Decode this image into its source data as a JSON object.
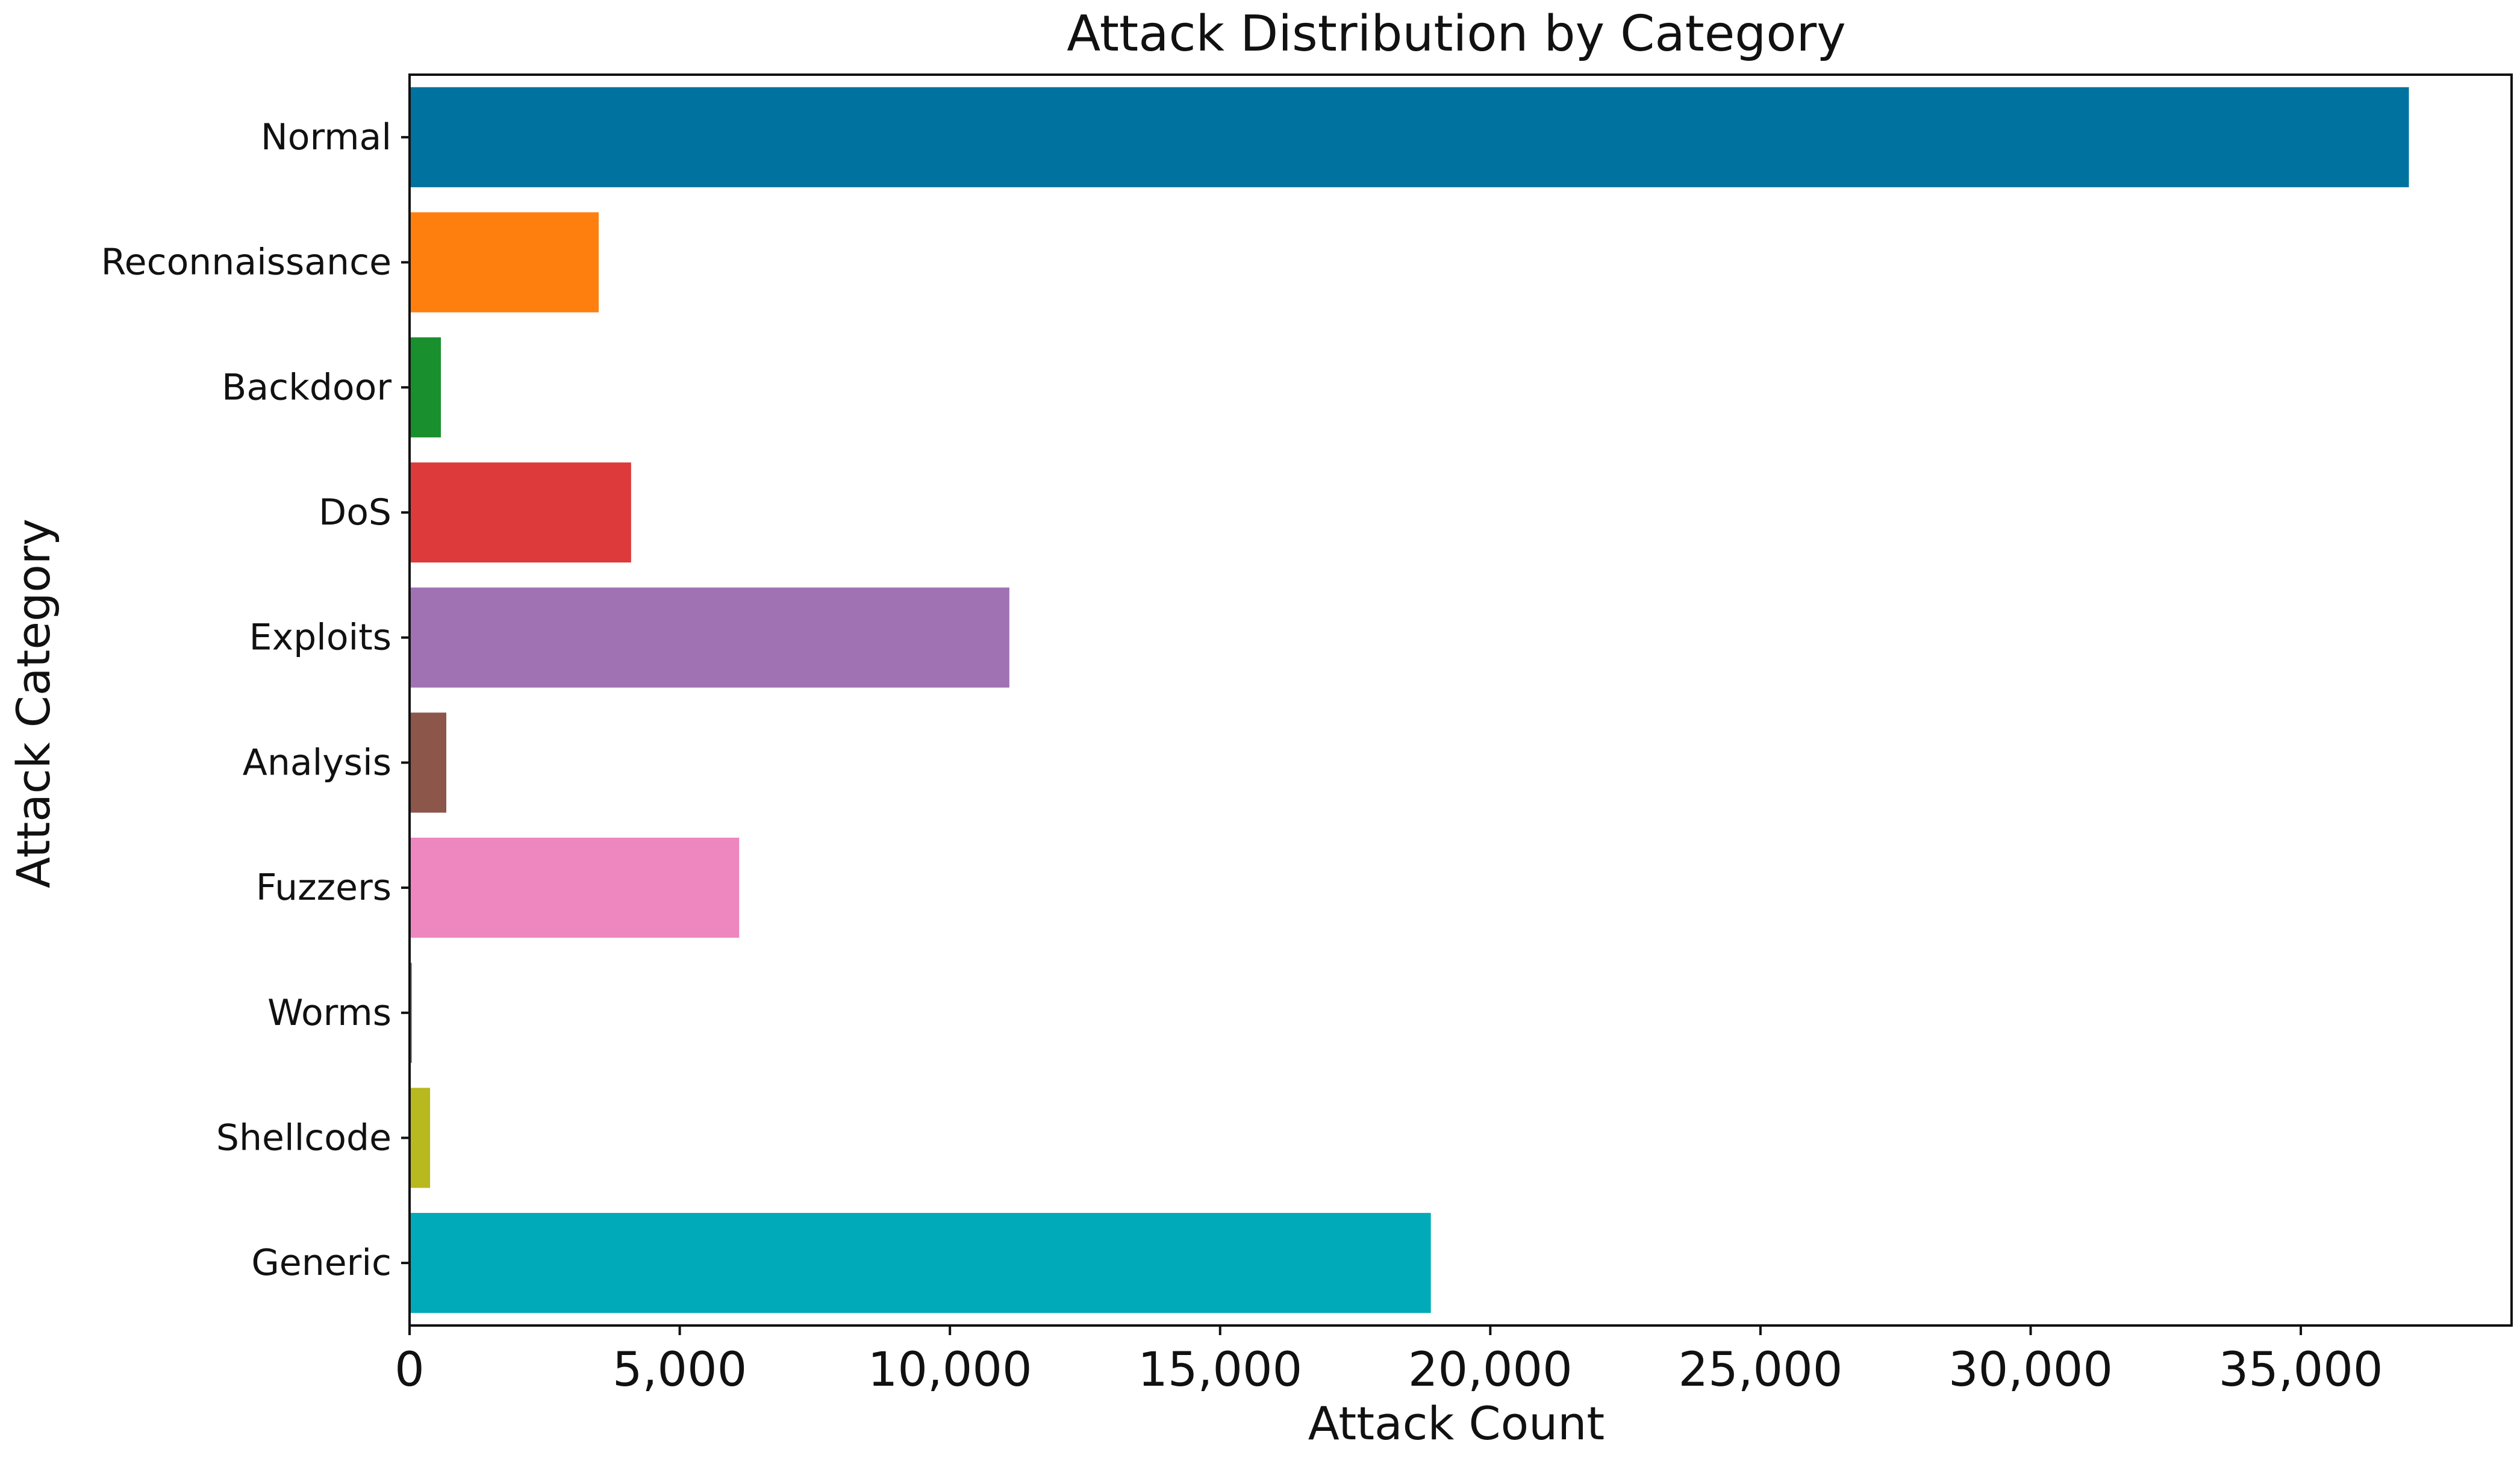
{
  "chart_data": {
    "type": "bar",
    "orientation": "horizontal",
    "title": "Attack Distribution by Category",
    "xlabel": "Attack Count",
    "ylabel": "Attack Category",
    "categories": [
      "Normal",
      "Reconnaissance",
      "Backdoor",
      "DoS",
      "Exploits",
      "Analysis",
      "Fuzzers",
      "Worms",
      "Shellcode",
      "Generic"
    ],
    "values": [
      37000,
      3500,
      580,
      4100,
      11100,
      680,
      6100,
      44,
      380,
      18900
    ],
    "colors": [
      "#0072a0",
      "#ff7f0e",
      "#1a8f2e",
      "#dd3b3b",
      "#a072b4",
      "#8c564b",
      "#ee86bf",
      "#7f7f7f",
      "#b8b81f",
      "#00aab8"
    ],
    "xlim": [
      0,
      38900
    ],
    "xticks": [
      0,
      5000,
      10000,
      15000,
      20000,
      25000,
      30000,
      35000
    ],
    "xtick_labels": [
      "0",
      "5,000",
      "10,000",
      "15,000",
      "20,000",
      "25,000",
      "30,000",
      "35,000"
    ],
    "grid": false,
    "legend": "none"
  }
}
